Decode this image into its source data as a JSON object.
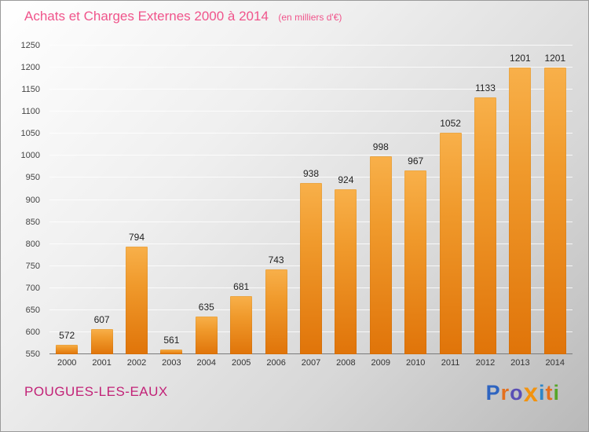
{
  "header": {
    "title": "Achats et Charges Externes 2000 à 2014",
    "subtitle": "(en milliers d'€)"
  },
  "footer": {
    "location": "POUGUES-LES-EAUX"
  },
  "logo": {
    "name": "Proxiti",
    "letters": [
      {
        "ch": "P",
        "color": "#2e64c0"
      },
      {
        "ch": "r",
        "color": "#e4701e"
      },
      {
        "ch": "o",
        "color": "#5a4fb5"
      },
      {
        "ch": "x",
        "color": "#f2930f"
      },
      {
        "ch": "i",
        "color": "#2f86c8"
      },
      {
        "ch": "t",
        "color": "#e4701e"
      },
      {
        "ch": "i",
        "color": "#56a629"
      }
    ]
  },
  "chart_data": {
    "type": "bar",
    "title": "Achats et Charges Externes 2000 à 2014",
    "subtitle": "(en milliers d'€)",
    "categories": [
      "2000",
      "2001",
      "2002",
      "2003",
      "2004",
      "2005",
      "2006",
      "2007",
      "2008",
      "2009",
      "2010",
      "2011",
      "2012",
      "2013",
      "2014"
    ],
    "values": [
      572,
      607,
      794,
      561,
      635,
      681,
      743,
      938,
      924,
      998,
      967,
      1052,
      1133,
      1201,
      1201
    ],
    "xlabel": "",
    "ylabel": "",
    "ylim": [
      550,
      1250
    ],
    "ytick_step": 50,
    "grid": true,
    "legend_position": "none",
    "bar_color_top": "#f8b04a",
    "bar_color_bottom": "#e07409",
    "value_label_color": "#222222",
    "title_color": "#f0548b",
    "location_color": "#c22277"
  }
}
